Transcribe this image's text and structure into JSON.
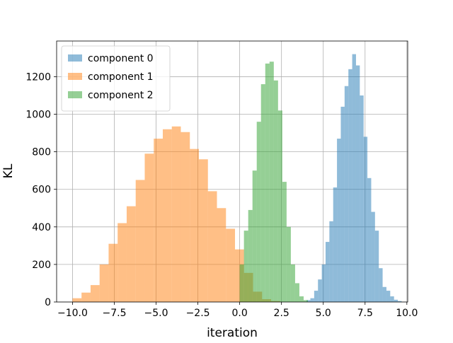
{
  "chart_data": {
    "type": "histogram",
    "title": "",
    "xlabel": "iteration",
    "ylabel": "KL",
    "xlim": [
      -10.95,
      10.05
    ],
    "ylim": [
      0,
      1390
    ],
    "x_ticks": [
      -10.0,
      -7.5,
      -5.0,
      -2.5,
      0.0,
      2.5,
      5.0,
      7.5,
      10.0
    ],
    "x_tick_labels": [
      "−10.0",
      "−7.5",
      "−5.0",
      "−2.5",
      "0.0",
      "2.5",
      "5.0",
      "7.5",
      "10.0"
    ],
    "y_ticks": [
      0,
      200,
      400,
      600,
      800,
      1000,
      1200
    ],
    "y_tick_labels": [
      "0",
      "200",
      "400",
      "600",
      "800",
      "1000",
      "1200"
    ],
    "grid": true,
    "legend_position": "top-left",
    "alpha": 0.5,
    "series": [
      {
        "name": "component 0",
        "color": "#1f77b4",
        "bin_start": 4.0,
        "bin_width": 0.2275,
        "counts": [
          10,
          20,
          60,
          120,
          200,
          320,
          430,
          610,
          870,
          1040,
          1150,
          1240,
          1320,
          1260,
          1100,
          880,
          660,
          480,
          380,
          180,
          80,
          60,
          30,
          12,
          5
        ]
      },
      {
        "name": "component 1",
        "color": "#ff7f0e",
        "bin_start": -10.0,
        "bin_width": 0.54,
        "counts": [
          20,
          50,
          90,
          200,
          310,
          420,
          510,
          650,
          790,
          870,
          920,
          935,
          905,
          815,
          760,
          590,
          500,
          390,
          280,
          155,
          55,
          15,
          5
        ]
      },
      {
        "name": "component 2",
        "color": "#2ca02c",
        "bin_start": 0.0,
        "bin_width": 0.255,
        "counts": [
          200,
          380,
          490,
          700,
          960,
          1160,
          1270,
          1280,
          1180,
          1020,
          640,
          400,
          200,
          100,
          30,
          10
        ]
      }
    ]
  }
}
